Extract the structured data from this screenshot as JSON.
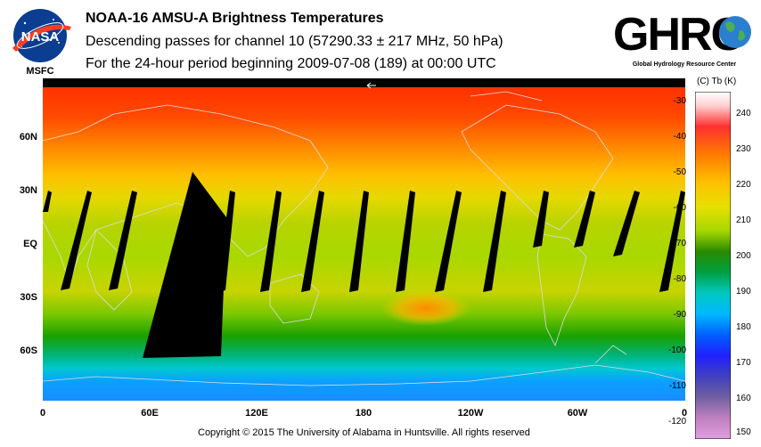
{
  "header": {
    "title": "NOAA-16 AMSU-A Brightness Temperatures",
    "subtitle": "Descending passes for channel 10 (57290.33 ± 217 MHz, 50 hPa)",
    "period": "For the 24-hour period beginning 2009-07-08 (189) at 00:00 UTC"
  },
  "logos": {
    "left": {
      "name": "nasa-meatball-logo",
      "text": "NASA",
      "caption": "MSFC"
    },
    "right": {
      "name": "ghrc-logo",
      "text": "GHRC",
      "caption": "Global Hydrology Resource Center"
    }
  },
  "map": {
    "lat_labels": [
      "60N",
      "30N",
      "EQ",
      "30S",
      "60S"
    ],
    "lon_labels": [
      "0",
      "60E",
      "120E",
      "180",
      "120W",
      "60W",
      "0"
    ],
    "colors": {
      "polar_north": "#ff2a00",
      "mid_north": "#ff9a00",
      "subtropic": "#e0d800",
      "equator": "#a4d400",
      "south_mid": "#22b000",
      "south_band": "#00a0ff",
      "antarctic": "#00c8d8",
      "gap": "#000000",
      "coast": "#d8d8d8"
    }
  },
  "colorbar": {
    "header": "(C)  Tb  (K)",
    "celsius_ticks": [
      "-30",
      "-40",
      "-50",
      "-60",
      "-70",
      "-80",
      "-90",
      "-100",
      "-110",
      "-120"
    ],
    "kelvin_ticks": [
      "240",
      "230",
      "220",
      "210",
      "200",
      "190",
      "180",
      "170",
      "160",
      "150"
    ]
  },
  "footer": {
    "copyright": "Copyright © 2015 The University of Alabama in Huntsville.  All rights reserved"
  }
}
